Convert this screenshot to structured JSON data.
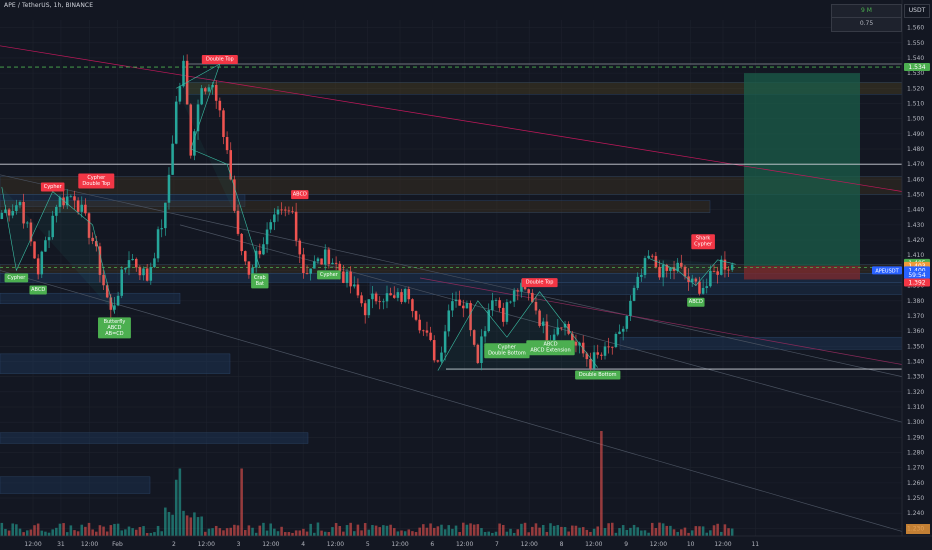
{
  "header": {
    "symbol_title": "APE / TetherUS, 1h, BINANCE",
    "currency": "USDT"
  },
  "info_box": {
    "row1": "9 M",
    "row2": "0.75"
  },
  "colors": {
    "background": "#131722",
    "up": "#26a69a",
    "down": "#ef5350",
    "grid": "#1e222d",
    "label_green": "#4caf50",
    "label_red": "#f23645"
  },
  "chart_data": {
    "type": "candlestick",
    "ylim": [
      1.225,
      1.565
    ],
    "y_ticks": [
      "1.560",
      "1.550",
      "1.540",
      "1.530",
      "1.520",
      "1.510",
      "1.500",
      "1.490",
      "1.480",
      "1.470",
      "1.460",
      "1.450",
      "1.440",
      "1.430",
      "1.420",
      "1.410",
      "1.400",
      "1.390",
      "1.380",
      "1.370",
      "1.360",
      "1.350",
      "1.340",
      "1.330",
      "1.320",
      "1.310",
      "1.300",
      "1.290",
      "1.280",
      "1.270",
      "1.260",
      "1.250",
      "1.240",
      "1.230"
    ],
    "x_ticks": [
      {
        "label": "12:00",
        "pos": 0.045
      },
      {
        "label": "31",
        "pos": 0.083
      },
      {
        "label": "12:00",
        "pos": 0.122
      },
      {
        "label": "Feb",
        "pos": 0.16
      },
      {
        "label": "2",
        "pos": 0.237
      },
      {
        "label": "12:00",
        "pos": 0.281
      },
      {
        "label": "3",
        "pos": 0.325
      },
      {
        "label": "12:00",
        "pos": 0.369
      },
      {
        "label": "4",
        "pos": 0.413
      },
      {
        "label": "12:00",
        "pos": 0.457
      },
      {
        "label": "5",
        "pos": 0.501
      },
      {
        "label": "12:00",
        "pos": 0.545
      },
      {
        "label": "6",
        "pos": 0.589
      },
      {
        "label": "12:00",
        "pos": 0.633
      },
      {
        "label": "7",
        "pos": 0.677
      },
      {
        "label": "12:00",
        "pos": 0.721
      },
      {
        "label": "8",
        "pos": 0.765
      },
      {
        "label": "12:00",
        "pos": 0.809
      },
      {
        "label": "9",
        "pos": 0.853
      },
      {
        "label": "12:00",
        "pos": 0.897
      },
      {
        "label": "10",
        "pos": 0.941
      },
      {
        "label": "12:00",
        "pos": 0.985
      },
      {
        "label": "11",
        "pos": 1.029
      }
    ],
    "price_tags": [
      {
        "label": "1.534",
        "value": 1.534,
        "color": "#4caf50"
      },
      {
        "label": "1.405",
        "value": 1.405,
        "color": "#4caf50"
      },
      {
        "label": "1.403",
        "value": 1.403,
        "color": "#ef9a3a"
      },
      {
        "label": "1.400",
        "value": 1.4,
        "color": "#2962ff"
      },
      {
        "label": "59:54",
        "value": 1.397,
        "color": "#2962ff"
      },
      {
        "label": "1.392",
        "value": 1.392,
        "color": "#f23645"
      }
    ],
    "symbol_tag": "APEUSDT",
    "key_points": [
      [
        0,
        1.438
      ],
      [
        5,
        1.445
      ],
      [
        10,
        1.4
      ],
      [
        15,
        1.445
      ],
      [
        20,
        1.45
      ],
      [
        25,
        1.42
      ],
      [
        30,
        1.372
      ],
      [
        35,
        1.41
      ],
      [
        40,
        1.395
      ],
      [
        45,
        1.44
      ],
      [
        48,
        1.51
      ],
      [
        50,
        1.535
      ],
      [
        52,
        1.48
      ],
      [
        55,
        1.525
      ],
      [
        58,
        1.52
      ],
      [
        62,
        1.48
      ],
      [
        65,
        1.42
      ],
      [
        68,
        1.4
      ],
      [
        72,
        1.42
      ],
      [
        76,
        1.435
      ],
      [
        80,
        1.438
      ],
      [
        83,
        1.4
      ],
      [
        87,
        1.405
      ],
      [
        90,
        1.41
      ],
      [
        93,
        1.4
      ],
      [
        96,
        1.39
      ],
      [
        100,
        1.375
      ],
      [
        104,
        1.385
      ],
      [
        108,
        1.38
      ],
      [
        112,
        1.385
      ],
      [
        116,
        1.36
      ],
      [
        120,
        1.34
      ],
      [
        124,
        1.385
      ],
      [
        128,
        1.375
      ],
      [
        131,
        1.345
      ],
      [
        135,
        1.385
      ],
      [
        138,
        1.372
      ],
      [
        142,
        1.388
      ],
      [
        146,
        1.382
      ],
      [
        150,
        1.355
      ],
      [
        154,
        1.368
      ],
      [
        158,
        1.35
      ],
      [
        162,
        1.34
      ],
      [
        166,
        1.345
      ],
      [
        170,
        1.355
      ],
      [
        174,
        1.385
      ],
      [
        178,
        1.408
      ],
      [
        182,
        1.398
      ],
      [
        186,
        1.402
      ],
      [
        190,
        1.39
      ],
      [
        194,
        1.39
      ],
      [
        198,
        1.405
      ],
      [
        202,
        1.403
      ]
    ],
    "pattern_labels": [
      {
        "lines": [
          "Cypher"
        ],
        "idx": 14,
        "price": 1.45,
        "color": "#f23645",
        "pos": "above"
      },
      {
        "lines": [
          "Cypher",
          "Double Top"
        ],
        "idx": 26,
        "price": 1.452,
        "color": "#f23645",
        "pos": "above"
      },
      {
        "lines": [
          "Double Top"
        ],
        "idx": 60,
        "price": 1.534,
        "color": "#f23645",
        "pos": "above"
      },
      {
        "lines": [
          "ABCD"
        ],
        "idx": 82,
        "price": 1.445,
        "color": "#f23645",
        "pos": "above"
      },
      {
        "lines": [
          "Double Top"
        ],
        "idx": 148,
        "price": 1.387,
        "color": "#f23645",
        "pos": "above"
      },
      {
        "lines": [
          "Shark",
          "Cypher"
        ],
        "idx": 193,
        "price": 1.412,
        "color": "#f23645",
        "pos": "above"
      },
      {
        "lines": [
          "Cypher"
        ],
        "idx": 4,
        "price": 1.4,
        "color": "#4caf50",
        "pos": "below"
      },
      {
        "lines": [
          "ABCD"
        ],
        "idx": 10,
        "price": 1.392,
        "color": "#4caf50",
        "pos": "below"
      },
      {
        "lines": [
          "Butterfly",
          "ABCD",
          "AB=CD"
        ],
        "idx": 31,
        "price": 1.371,
        "color": "#4caf50",
        "pos": "below"
      },
      {
        "lines": [
          "Crab",
          "Bat"
        ],
        "idx": 71,
        "price": 1.4,
        "color": "#4caf50",
        "pos": "below"
      },
      {
        "lines": [
          "Cypher"
        ],
        "idx": 90,
        "price": 1.402,
        "color": "#4caf50",
        "pos": "below"
      },
      {
        "lines": [
          "Cypher",
          "Double Bottom"
        ],
        "idx": 139,
        "price": 1.354,
        "color": "#4caf50",
        "pos": "below"
      },
      {
        "lines": [
          "ABCD",
          "ABCD Extension"
        ],
        "idx": 151,
        "price": 1.356,
        "color": "#4caf50",
        "pos": "below"
      },
      {
        "lines": [
          "Double Bottom"
        ],
        "idx": 164,
        "price": 1.336,
        "color": "#4caf50",
        "pos": "below"
      },
      {
        "lines": [
          "ABCD"
        ],
        "idx": 191,
        "price": 1.384,
        "color": "#4caf50",
        "pos": "below"
      }
    ],
    "horizontal_levels": [
      1.534,
      1.47,
      1.335,
      1.4
    ],
    "grid": true,
    "candle_count": 202
  }
}
